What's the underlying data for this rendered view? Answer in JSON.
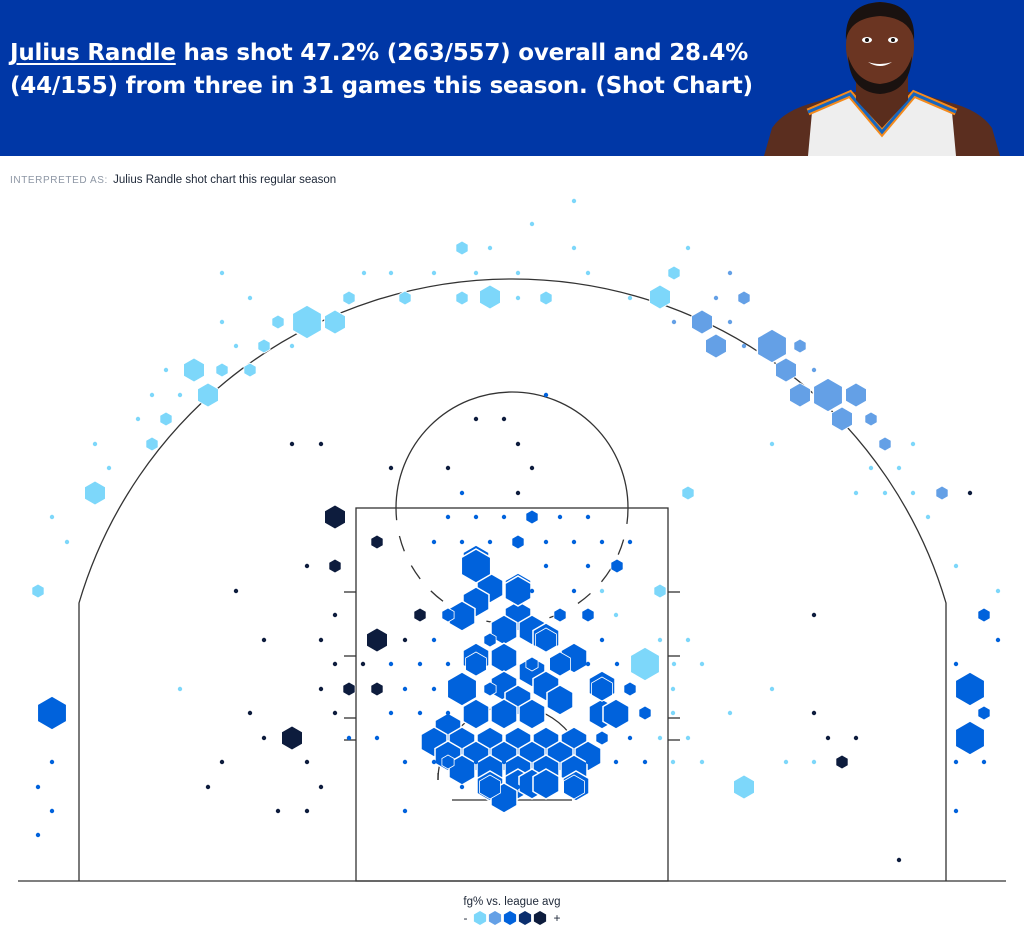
{
  "header": {
    "player_name": "Julius Randle",
    "headline_rest_1": " has shot 47.2% (263/557) overall and 28.4%",
    "headline_rest_2": "(44/155) from three in 31 games this season. (Shot Chart)",
    "colors": {
      "background": "#0037a6",
      "text": "#ffffff"
    }
  },
  "interpretation": {
    "label": "INTERPRETED AS:",
    "text": "Julius Randle shot chart this regular season"
  },
  "legend": {
    "title": "fg% vs. league avg",
    "minus": "-",
    "plus": "+",
    "swatches": [
      "#7dd7fa",
      "#64a0e6",
      "#0062dc",
      "#0a2e6e",
      "#0d1c3d"
    ]
  },
  "chart_data": {
    "type": "hexbin-shot-chart",
    "color_scale": {
      "cold": "#7dd7fa",
      "below": "#64a0e6",
      "avg": "#0062dc",
      "above": "#0a2e6e",
      "hot": "#0d1c3d"
    },
    "zones_description": [
      "paint",
      "mid-range",
      "three-point"
    ],
    "bins": [
      {
        "zone": "paint-rim",
        "fg": "avg",
        "size": "max"
      },
      {
        "zone": "paint-left",
        "fg": "avg",
        "size": "large"
      },
      {
        "zone": "paint-right",
        "fg": "avg",
        "size": "large"
      },
      {
        "zone": "short-mid-left",
        "fg": "hot",
        "size": "medium"
      },
      {
        "zone": "short-mid-right",
        "fg": "hot",
        "size": "small"
      },
      {
        "zone": "mid-left-baseline",
        "fg": "hot",
        "size": "medium"
      },
      {
        "zone": "mid-right-wing",
        "fg": "cold",
        "size": "medium"
      },
      {
        "zone": "corner-three-left",
        "fg": "avg",
        "size": "large"
      },
      {
        "zone": "corner-three-right",
        "fg": "avg",
        "size": "large"
      },
      {
        "zone": "wing-three-left",
        "fg": "cold",
        "size": "large"
      },
      {
        "zone": "wing-three-right",
        "fg": "below",
        "size": "large"
      },
      {
        "zone": "top-three",
        "fg": "cold",
        "size": "medium"
      }
    ]
  }
}
